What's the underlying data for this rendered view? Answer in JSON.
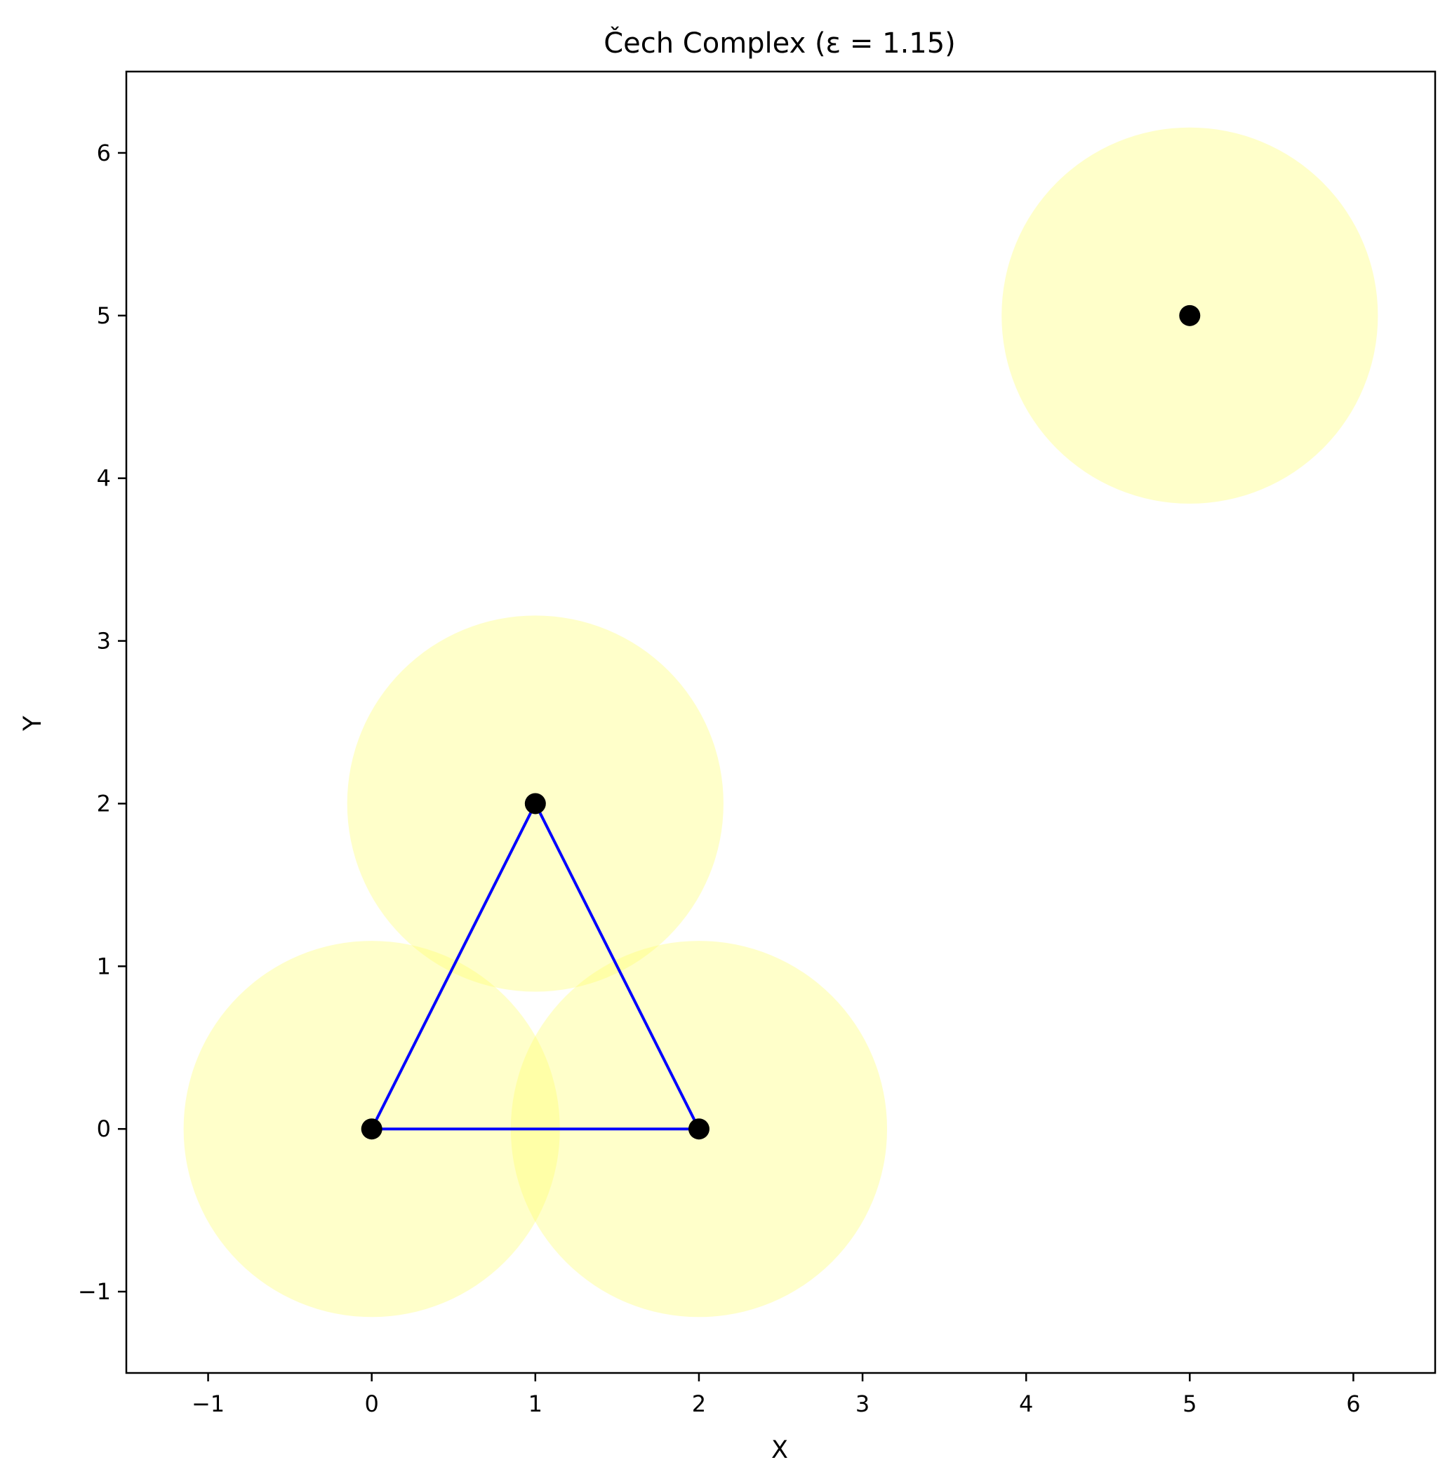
{
  "chart_data": {
    "type": "scatter",
    "title": "Čech Complex (ε = 1.15)",
    "xlabel": "X",
    "ylabel": "Y",
    "xlim": [
      -1.5,
      6.5
    ],
    "ylim": [
      -1.5,
      6.5
    ],
    "grid": false,
    "xticks": [
      -1,
      0,
      1,
      2,
      3,
      4,
      5,
      6
    ],
    "yticks": [
      -1,
      0,
      1,
      2,
      3,
      4,
      5,
      6
    ],
    "xtick_labels": [
      "−1",
      "0",
      "1",
      "2",
      "3",
      "4",
      "5",
      "6"
    ],
    "ytick_labels": [
      "−1",
      "0",
      "1",
      "2",
      "3",
      "4",
      "5",
      "6"
    ],
    "epsilon": 1.15,
    "points": [
      {
        "x": 0,
        "y": 0
      },
      {
        "x": 2,
        "y": 0
      },
      {
        "x": 1,
        "y": 2
      },
      {
        "x": 5,
        "y": 5
      }
    ],
    "edges": [
      [
        0,
        1
      ],
      [
        0,
        2
      ],
      [
        1,
        2
      ]
    ],
    "colors": {
      "point": "#000000",
      "edge": "#0000ff",
      "ball": "#ffff66"
    }
  }
}
